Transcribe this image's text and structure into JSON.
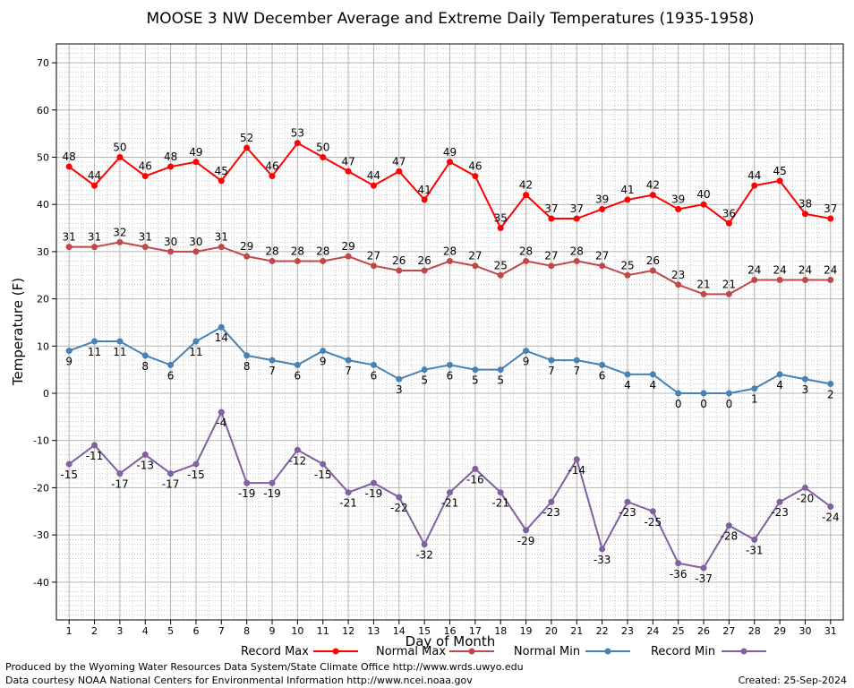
{
  "chart_data": {
    "type": "line",
    "title": "MOOSE 3 NW December Average and Extreme Daily Temperatures (1935-1958)",
    "xlabel": "Day of Month",
    "ylabel": "Temperature (F)",
    "ylim": [
      -48,
      74
    ],
    "yticks": [
      -40,
      -30,
      -20,
      -10,
      0,
      10,
      20,
      30,
      40,
      50,
      60,
      70
    ],
    "x": [
      1,
      2,
      3,
      4,
      5,
      6,
      7,
      8,
      9,
      10,
      11,
      12,
      13,
      14,
      15,
      16,
      17,
      18,
      19,
      20,
      21,
      22,
      23,
      24,
      25,
      26,
      27,
      28,
      29,
      30,
      31
    ],
    "grid": true,
    "legend_position": "bottom",
    "series": [
      {
        "name": "Record Max",
        "color": "#ff0000",
        "label_pos": "above",
        "values": [
          48,
          44,
          50,
          46,
          48,
          49,
          45,
          52,
          46,
          53,
          50,
          47,
          44,
          47,
          41,
          49,
          46,
          35,
          42,
          37,
          37,
          39,
          41,
          42,
          39,
          40,
          36,
          44,
          45,
          38,
          37
        ]
      },
      {
        "name": "Normal Max",
        "color": "#c04848",
        "label_pos": "above",
        "values": [
          31,
          31,
          32,
          31,
          30,
          30,
          31,
          29,
          28,
          28,
          28,
          29,
          27,
          26,
          26,
          28,
          27,
          25,
          28,
          27,
          28,
          27,
          25,
          26,
          23,
          21,
          21,
          24,
          24,
          24,
          24
        ]
      },
      {
        "name": "Normal Min",
        "color": "#4682b4",
        "label_pos": "below",
        "values": [
          9,
          11,
          11,
          8,
          6,
          11,
          14,
          8,
          7,
          6,
          9,
          7,
          6,
          3,
          5,
          6,
          5,
          5,
          9,
          7,
          7,
          6,
          4,
          4,
          0,
          0,
          0,
          1,
          4,
          3,
          2
        ]
      },
      {
        "name": "Record Min",
        "color": "#8060a0",
        "label_pos": "below",
        "values": [
          -15,
          -11,
          -17,
          -13,
          -17,
          -15,
          -4,
          -19,
          -19,
          -12,
          -15,
          -21,
          -19,
          -22,
          -32,
          -21,
          -16,
          -21,
          -29,
          -23,
          -14,
          -33,
          -23,
          -25,
          -36,
          -37,
          -28,
          -31,
          -23,
          -20,
          -24
        ]
      }
    ]
  },
  "footer": {
    "line1": "Produced by the Wyoming Water Resources Data System/State Climate Office http://www.wrds.uwyo.edu",
    "line2": "Data courtesy NOAA National Centers for Environmental Information http://www.ncei.noaa.gov",
    "created": "Created:  25-Sep-2024"
  }
}
